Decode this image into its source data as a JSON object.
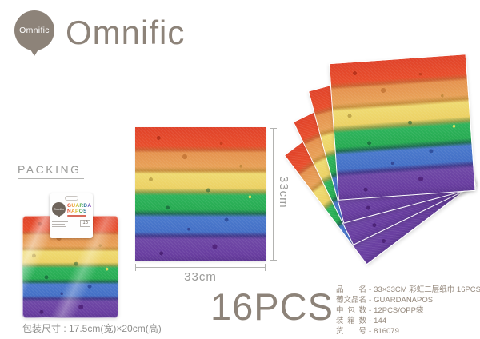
{
  "brand": {
    "balloon_text": "Omnific",
    "wordmark": "Omnific"
  },
  "packing": {
    "label": "PACKING",
    "package_size_note": "包装尺寸 : 17.5cm(宽)×20cm(高)"
  },
  "package_card": {
    "balloon_text": "Omnific",
    "title_line1": "GUARDA",
    "title_line2": "NAPOS",
    "count_badge": "16"
  },
  "dimensions": {
    "width_label": "33cm",
    "height_label": "33cm"
  },
  "pieces_label": "16PCS",
  "specs": {
    "separator": "-",
    "rows": [
      {
        "label": "品名",
        "value": "33×33CM 彩虹二层纸巾 16PCS"
      },
      {
        "label": "葡文品名",
        "value": "GUARDANAPOS"
      },
      {
        "label": "中包数",
        "value": "12PCS/OPP袋"
      },
      {
        "label": "装箱数",
        "value": "144"
      },
      {
        "label": "货号",
        "value": "816079"
      }
    ]
  },
  "colors": {
    "brand_taupe": "#8d8379",
    "stripe_red": "#e8472b",
    "stripe_orange": "#e5944e",
    "stripe_yellow": "#eed468",
    "stripe_green": "#2cb156",
    "stripe_blue": "#4472c8",
    "stripe_purple": "#6b41a0"
  }
}
